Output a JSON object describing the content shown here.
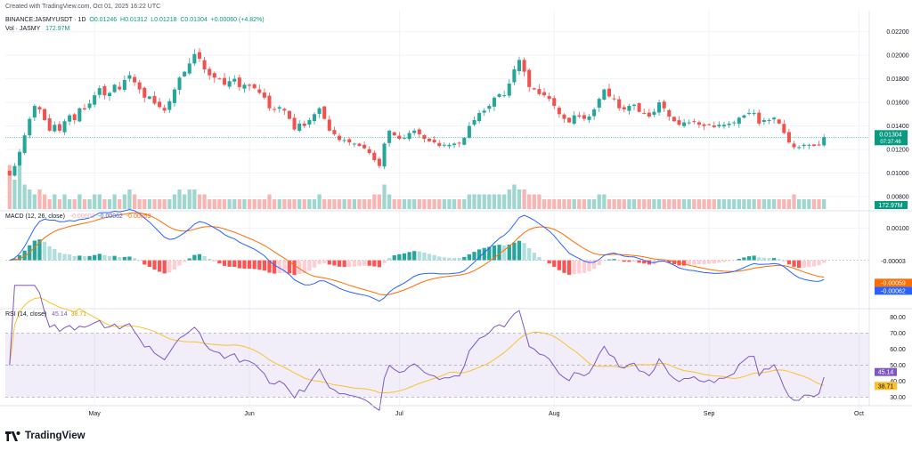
{
  "created": "Created with TradingView.com, Oct 01, 2025 16:22 UTC",
  "main_header": {
    "symbol": "BINANCE:JASMYUSDT · 1D",
    "o": "O0.01246",
    "h": "H0.01312",
    "l": "L0.01218",
    "c": "C0.01304",
    "change": "+0.00060 (+4.82%)"
  },
  "vol_header": {
    "label": "Vol · JASMY",
    "value": "172.97M"
  },
  "macd_header": {
    "label": "MACD (12, 26, close)",
    "hist": "-0.00003",
    "macd": "-0.00062",
    "signal": "-0.00059"
  },
  "rsi_header": {
    "label": "RSI (14, close)",
    "rsi": "45.14",
    "ma": "38.71"
  },
  "logo": {
    "text": "TradingView"
  },
  "colors": {
    "up": "#26a69a",
    "down": "#ef5350",
    "vol_up": "#9fd6cf",
    "vol_down": "#f7b6b4",
    "macd": "#2962ff",
    "signal": "#ff6d00",
    "rsi": "#7e57c2",
    "rsi_ma": "#fbc02d",
    "last_price": "#089981"
  },
  "chart_data": [
    {
      "type": "candlestick",
      "name": "price",
      "x_tick_labels": [
        "May",
        "Jun",
        "Jul",
        "Aug",
        "Sep",
        "Oct"
      ],
      "x_tick_dates": [
        "2025-05-01",
        "2025-06-01",
        "2025-07-01",
        "2025-08-01",
        "2025-09-01",
        "2025-10-01"
      ],
      "y_tick_labels": [
        "0.00800",
        "0.01000",
        "0.01200",
        "0.01400",
        "0.01600",
        "0.01800",
        "0.02000",
        "0.02200"
      ],
      "ylim": [
        0.0071,
        0.0228
      ],
      "last_price": {
        "value": 0.01304,
        "label": "0.01304",
        "countdown": "07:37:46"
      },
      "closes": [
        0.0098,
        0.0106,
        0.0118,
        0.0132,
        0.0146,
        0.0157,
        0.0154,
        0.0145,
        0.0136,
        0.0141,
        0.0136,
        0.0144,
        0.0149,
        0.0145,
        0.0155,
        0.0154,
        0.0159,
        0.0166,
        0.0172,
        0.0166,
        0.0168,
        0.0175,
        0.0171,
        0.0179,
        0.0183,
        0.0177,
        0.0171,
        0.0164,
        0.0165,
        0.0159,
        0.0156,
        0.0153,
        0.0161,
        0.0171,
        0.0181,
        0.0186,
        0.0193,
        0.0201,
        0.0197,
        0.0188,
        0.0183,
        0.0181,
        0.018,
        0.0175,
        0.0178,
        0.018,
        0.0173,
        0.0175,
        0.0174,
        0.0172,
        0.0168,
        0.0164,
        0.0155,
        0.0154,
        0.0156,
        0.0153,
        0.0146,
        0.0137,
        0.0142,
        0.014,
        0.0145,
        0.015,
        0.0155,
        0.0146,
        0.0136,
        0.0133,
        0.0128,
        0.0128,
        0.0126,
        0.0125,
        0.0123,
        0.0121,
        0.0117,
        0.0111,
        0.0106,
        0.0125,
        0.0136,
        0.0132,
        0.0129,
        0.013,
        0.0134,
        0.0136,
        0.0133,
        0.0129,
        0.0127,
        0.0126,
        0.0123,
        0.0124,
        0.0124,
        0.0125,
        0.0125,
        0.013,
        0.014,
        0.0145,
        0.0151,
        0.0153,
        0.0157,
        0.0164,
        0.0167,
        0.0166,
        0.0176,
        0.0188,
        0.0196,
        0.0186,
        0.0173,
        0.0171,
        0.0167,
        0.0166,
        0.0163,
        0.0157,
        0.015,
        0.0146,
        0.0143,
        0.0149,
        0.0148,
        0.0146,
        0.0148,
        0.0154,
        0.0163,
        0.0171,
        0.0165,
        0.0163,
        0.0155,
        0.0154,
        0.0157,
        0.0158,
        0.0152,
        0.0151,
        0.0148,
        0.0152,
        0.016,
        0.0155,
        0.0148,
        0.0144,
        0.0141,
        0.0143,
        0.0143,
        0.0144,
        0.0141,
        0.014,
        0.0141,
        0.0139,
        0.0141,
        0.0141,
        0.0142,
        0.0143,
        0.0147,
        0.0149,
        0.0151,
        0.0151,
        0.0142,
        0.0145,
        0.0145,
        0.0147,
        0.0142,
        0.0134,
        0.0126,
        0.0122,
        0.0122,
        0.0124,
        0.0124,
        0.0123,
        0.0124,
        0.01304
      ],
      "volume_axis_label": "172.97M",
      "volume": [
        9,
        6,
        10,
        5,
        4,
        3,
        4,
        3,
        2,
        3,
        2,
        3,
        2,
        2,
        3,
        2,
        2,
        3,
        3,
        2,
        2,
        3,
        2,
        3,
        4,
        3,
        2,
        2,
        2,
        2,
        2,
        2,
        2,
        3,
        4,
        3,
        4,
        4,
        3,
        3,
        2,
        2,
        2,
        2,
        2,
        2,
        2,
        2,
        2,
        2,
        2,
        2,
        3,
        2,
        2,
        2,
        2,
        2,
        2,
        2,
        2,
        2,
        3,
        2,
        2,
        2,
        2,
        2,
        2,
        2,
        2,
        2,
        2,
        3,
        3,
        5,
        3,
        2,
        2,
        2,
        2,
        2,
        2,
        2,
        2,
        2,
        2,
        2,
        2,
        2,
        2,
        2,
        3,
        3,
        3,
        3,
        3,
        3,
        3,
        3,
        4,
        5,
        4,
        4,
        3,
        3,
        3,
        2,
        2,
        2,
        2,
        2,
        2,
        2,
        2,
        2,
        2,
        2,
        3,
        3,
        2,
        2,
        2,
        2,
        2,
        2,
        2,
        2,
        2,
        2,
        2,
        2,
        2,
        2,
        2,
        2,
        2,
        2,
        2,
        2,
        2,
        2,
        2,
        2,
        2,
        2,
        2,
        2,
        2,
        2,
        2,
        2,
        2,
        2,
        2,
        2,
        2,
        3,
        2,
        2,
        2,
        2,
        2,
        2,
        2,
        2
      ]
    },
    {
      "type": "line",
      "name": "MACD (12, 26, close)",
      "y_tick_labels": [
        "0.00100"
      ],
      "ylim": [
        -0.0014,
        0.00135
      ],
      "last_values": {
        "histogram": "-0.00003",
        "macd": "-0.00062",
        "signal": "-0.00059"
      }
    },
    {
      "type": "line",
      "name": "RSI (14, close)",
      "y_tick_labels": [
        "30.00",
        "40.00",
        "50.00",
        "60.00",
        "70.00",
        "80.00"
      ],
      "ylim": [
        28,
        82
      ],
      "bands": [
        30,
        50,
        70
      ],
      "last_values": {
        "rsi": "45.14",
        "ma": "38.71"
      }
    }
  ]
}
